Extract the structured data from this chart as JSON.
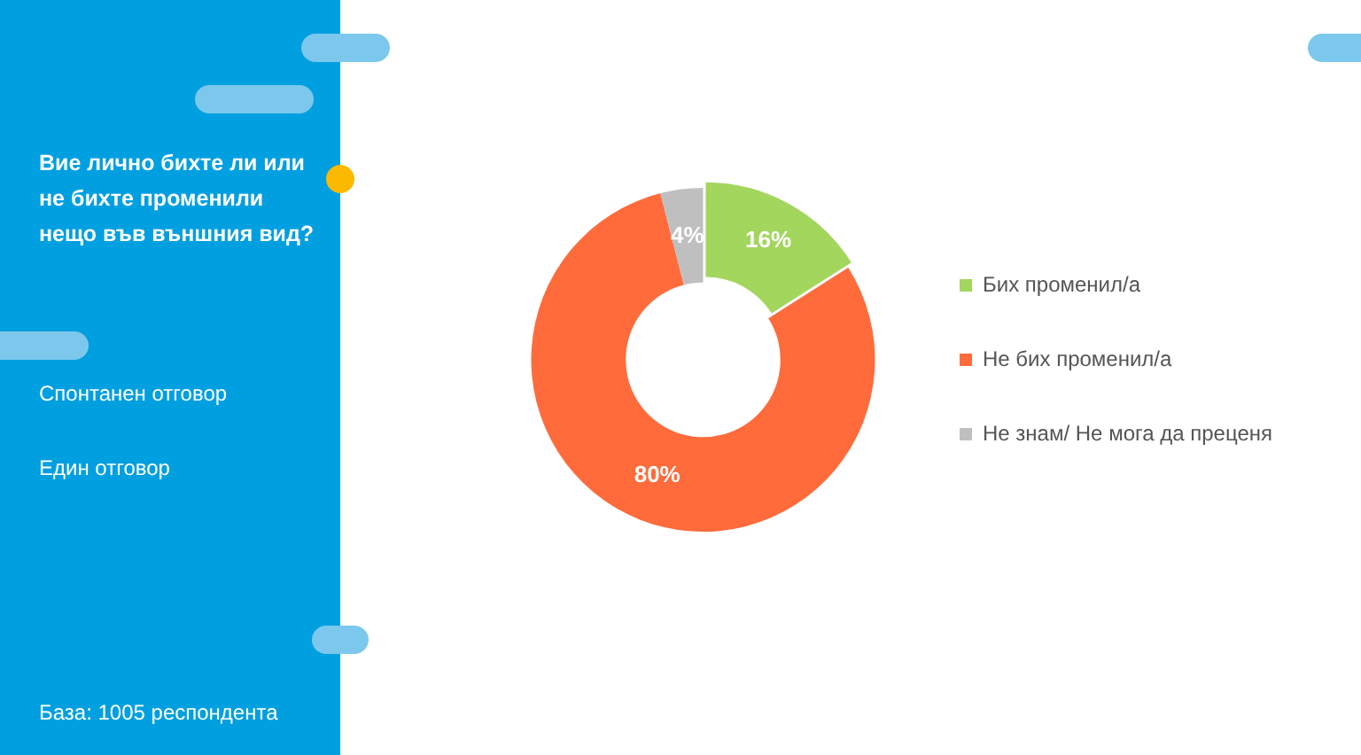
{
  "chart_data": {
    "type": "donut",
    "title": "Вие лично бихте ли или не бихте променили нещо във външния вид?",
    "annotations": [
      "Спонтанен отговор",
      "Един отговор",
      "База:  1005 респондента"
    ],
    "categories": [
      "Бих променил/а",
      "Не бих променил/а",
      "Не знам/ Не мога да преценя"
    ],
    "values": [
      16,
      80,
      4
    ],
    "colors": [
      "#a3d65c",
      "#ff6b3a",
      "#bfbfbf"
    ],
    "value_labels": [
      "16%",
      "80%",
      "4%"
    ],
    "legend": "right"
  }
}
